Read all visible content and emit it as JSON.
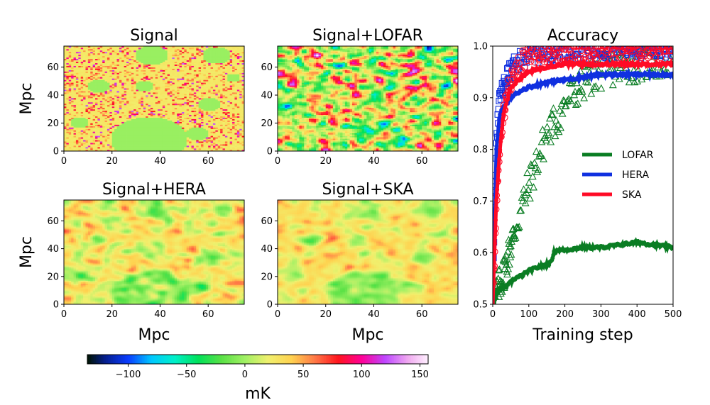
{
  "colors": {
    "lofar": "#0a7d23",
    "hera": "#1030e0",
    "ska": "#ff0a26"
  },
  "chart_data": [
    {
      "type": "heatmap",
      "id": "signal",
      "title": "Signal",
      "xlabel": "",
      "ylabel": "Mpc",
      "xlim": [
        0,
        75
      ],
      "ylim": [
        0,
        75
      ],
      "xticks": [
        "0",
        "20",
        "40",
        "60"
      ],
      "yticks": [
        "0",
        "20",
        "40",
        "60"
      ]
    },
    {
      "type": "heatmap",
      "id": "signal_lofar",
      "title": "Signal+LOFAR",
      "xlabel": "",
      "ylabel": "",
      "xlim": [
        0,
        75
      ],
      "ylim": [
        0,
        75
      ],
      "xticks": [
        "0",
        "20",
        "40",
        "60"
      ],
      "yticks": [
        "0",
        "20",
        "40",
        "60"
      ]
    },
    {
      "type": "heatmap",
      "id": "signal_hera",
      "title": "Signal+HERA",
      "xlabel": "Mpc",
      "ylabel": "Mpc",
      "xlim": [
        0,
        75
      ],
      "ylim": [
        0,
        75
      ],
      "xticks": [
        "0",
        "20",
        "40",
        "60"
      ],
      "yticks": [
        "0",
        "20",
        "40",
        "60"
      ]
    },
    {
      "type": "heatmap",
      "id": "signal_ska",
      "title": "Signal+SKA",
      "xlabel": "Mpc",
      "ylabel": "",
      "xlim": [
        0,
        75
      ],
      "ylim": [
        0,
        75
      ],
      "xticks": [
        "0",
        "20",
        "40",
        "60"
      ],
      "yticks": [
        "0",
        "20",
        "40",
        "60"
      ]
    },
    {
      "type": "colorbar",
      "id": "colorbar",
      "label": "mK",
      "range": [
        -135,
        157
      ],
      "ticks": [
        -100,
        -50,
        0,
        50,
        100,
        150
      ],
      "tick_labels": [
        "−100",
        "−50",
        "0",
        "50",
        "100",
        "150"
      ]
    },
    {
      "type": "line",
      "id": "accuracy",
      "title": "Accuracy",
      "xlabel": "Training step",
      "ylabel": "",
      "xlim": [
        0,
        500
      ],
      "ylim": [
        0.5,
        1.0
      ],
      "xticks": [
        0,
        100,
        200,
        300,
        400,
        500
      ],
      "xtick_labels": [
        "0",
        "100",
        "200",
        "300",
        "400",
        "500"
      ],
      "yticks": [
        0.5,
        0.6,
        0.7,
        0.8,
        0.9,
        1.0
      ],
      "ytick_labels": [
        "0.5",
        "0.6",
        "0.7",
        "0.8",
        "0.9",
        "1.0"
      ],
      "legend_position": "center-right",
      "series": [
        {
          "name": "LOFAR",
          "train_points_marker": "triangle",
          "line_x": [
            0,
            10,
            20,
            40,
            60,
            80,
            100,
            120,
            140,
            160,
            170,
            180,
            200,
            250,
            300,
            350,
            400,
            450,
            500
          ],
          "line_y": [
            0.49,
            0.52,
            0.53,
            0.535,
            0.55,
            0.555,
            0.565,
            0.57,
            0.575,
            0.58,
            0.6,
            0.605,
            0.605,
            0.61,
            0.61,
            0.615,
            0.62,
            0.615,
            0.61
          ],
          "points_x": [
            0,
            30,
            60,
            90,
            120,
            150,
            180,
            210,
            240,
            270,
            300,
            350,
            400,
            450,
            500
          ],
          "points_y": [
            0.5,
            0.56,
            0.64,
            0.71,
            0.77,
            0.83,
            0.86,
            0.9,
            0.92,
            0.94,
            0.95,
            0.96,
            0.965,
            0.97,
            0.975
          ]
        },
        {
          "name": "HERA",
          "train_points_marker": "square",
          "line_x": [
            0,
            5,
            10,
            20,
            30,
            50,
            80,
            100,
            150,
            200,
            250,
            300,
            400,
            500
          ],
          "line_y": [
            0.5,
            0.65,
            0.8,
            0.87,
            0.88,
            0.9,
            0.915,
            0.92,
            0.93,
            0.935,
            0.94,
            0.945,
            0.945,
            0.945
          ],
          "points_x": [
            0,
            10,
            20,
            40,
            60,
            80,
            100,
            150,
            200,
            300,
            400,
            500
          ],
          "points_y": [
            0.55,
            0.82,
            0.9,
            0.94,
            0.96,
            0.975,
            0.985,
            0.99,
            0.992,
            0.995,
            0.995,
            0.995
          ]
        },
        {
          "name": "SKA",
          "train_points_marker": "circle",
          "line_x": [
            0,
            5,
            10,
            20,
            30,
            50,
            80,
            100,
            150,
            200,
            300,
            400,
            500
          ],
          "line_y": [
            0.5,
            0.6,
            0.7,
            0.8,
            0.87,
            0.92,
            0.94,
            0.95,
            0.96,
            0.965,
            0.965,
            0.965,
            0.965
          ],
          "points_x": [
            0,
            10,
            20,
            40,
            60,
            80,
            100,
            150,
            200,
            300,
            400,
            500
          ],
          "points_y": [
            0.5,
            0.7,
            0.82,
            0.91,
            0.95,
            0.97,
            0.98,
            0.985,
            0.99,
            0.995,
            0.995,
            0.995
          ]
        }
      ]
    }
  ]
}
